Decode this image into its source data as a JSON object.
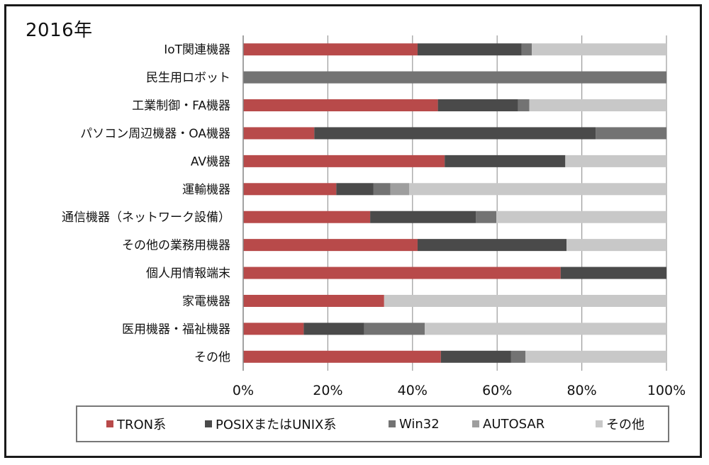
{
  "chart_data": {
    "type": "bar",
    "orientation": "horizontal",
    "stacked": true,
    "percent": true,
    "title": "2016年",
    "xlim": [
      0,
      100
    ],
    "x_ticks": [
      "0%",
      "20%",
      "40%",
      "60%",
      "80%",
      "100%"
    ],
    "grid": true,
    "legend_position": "bottom",
    "categories": [
      "IoT関連機器",
      "民生用ロボット",
      "工業制御・FA機器",
      "パソコン周辺機器・OA機器",
      "AV機器",
      "運輸機器",
      "通信機器（ネットワーク設備）",
      "その他の業務用機器",
      "個人用情報端末",
      "家電機器",
      "医用機器・福祉機器",
      "その他"
    ],
    "series": [
      {
        "name": "TRON系",
        "color": "#b84a4a",
        "values": [
          41.2,
          0,
          46.0,
          16.8,
          47.6,
          22.0,
          30.0,
          41.2,
          75.0,
          33.3,
          14.3,
          46.7
        ]
      },
      {
        "name": "POSIXまたはUNIX系",
        "color": "#4a4a4a",
        "values": [
          24.6,
          0,
          18.9,
          66.5,
          28.5,
          8.8,
          25.0,
          35.2,
          25.0,
          0,
          14.3,
          16.6
        ]
      },
      {
        "name": "Win32",
        "color": "#737373",
        "values": [
          2.4,
          100,
          2.7,
          16.7,
          0,
          4.0,
          4.8,
          0,
          0,
          0,
          14.3,
          3.4
        ]
      },
      {
        "name": "AUTOSAR",
        "color": "#9e9e9e",
        "values": [
          0,
          0,
          0,
          0,
          0,
          4.4,
          0,
          0,
          0,
          0,
          0,
          0
        ]
      },
      {
        "name": "その他",
        "color": "#c8c8c8",
        "values": [
          31.8,
          0,
          32.4,
          0,
          23.9,
          60.8,
          40.2,
          23.6,
          0,
          66.7,
          57.1,
          33.3
        ]
      }
    ]
  }
}
